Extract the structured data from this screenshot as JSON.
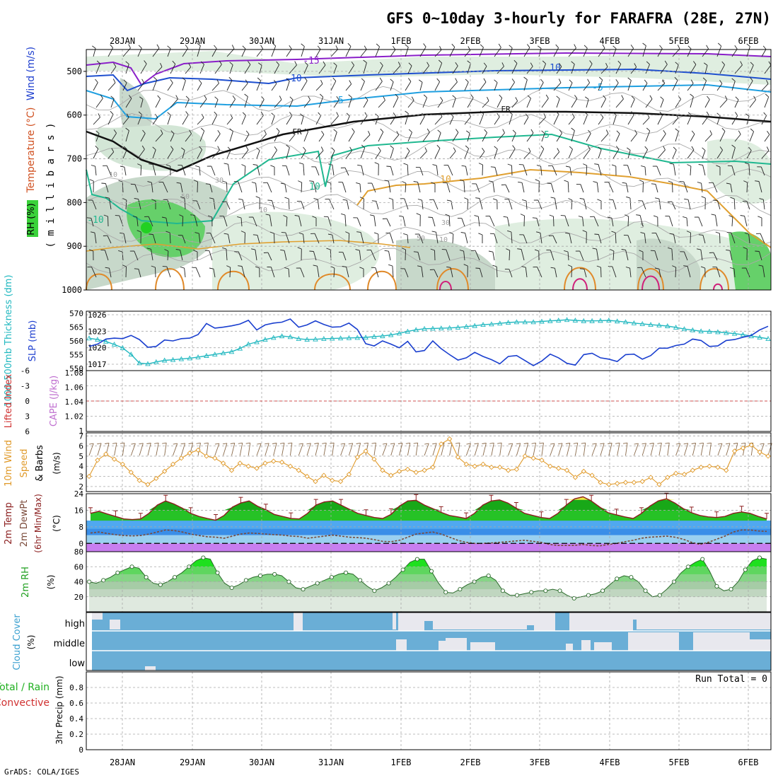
{
  "title": "GFS 0~10day 3-hourly for FARAFRA (28E, 27N)",
  "footer": "GrADS: COLA/IGES",
  "dates": [
    "28JAN",
    "29JAN",
    "30JAN",
    "31JAN",
    "1FEB",
    "2FEB",
    "3FEB",
    "4FEB",
    "5FEB",
    "6FEB"
  ],
  "colors": {
    "frame": "#000000",
    "grid": "#a8a8a8",
    "slp": "#1a3fcf",
    "thickness": "#22b8c0",
    "wind10m": "#e09a2a",
    "temp_max": "#8b1e1e",
    "dewpt": "#7a4a3a",
    "rh_green": "#3ad23a",
    "cloud": "#6aaed6",
    "cloud_gap": "#e8e8ee",
    "cape": "#d05050"
  },
  "chart_data": [
    {
      "id": "upper-air",
      "type": "heatmap",
      "ylabel_rh": "RH (%)",
      "ylabel_temp": "Temperature (°C)",
      "ylabel_wind": "Wind (m/s)",
      "ylabel_level": "( m i l l i b a r s )",
      "y_ticks": [
        500,
        600,
        700,
        800,
        900,
        1000
      ],
      "ylim": [
        450,
        1000
      ],
      "contour_labels": [
        "-15",
        "-10",
        "-5",
        "FR",
        "5",
        "10",
        "10",
        "-5",
        "-10",
        "10",
        "-5",
        "FR",
        "5",
        "30",
        "50",
        "10",
        "30",
        "10",
        "10",
        "50"
      ]
    },
    {
      "id": "slp-thickness",
      "type": "line",
      "ylabel_left": "1000-500mb Thickness (dm)",
      "ylabel_right": "SLP (mb)",
      "left_ticks": [
        "570",
        "565",
        "560",
        "555",
        "550"
      ],
      "right_ticks": [
        "1026",
        "1023",
        "1020",
        "1017"
      ],
      "slp_ylim": [
        1014.5,
        1027.5
      ],
      "thickness_ylim": [
        549,
        571
      ],
      "series": [
        {
          "name": "SLP",
          "values": [
            1019.8,
            1020.3,
            1021.4,
            1021.6,
            1021.5,
            1022.2,
            1021.3,
            1019.6,
            1019.8,
            1021.2,
            1021.0,
            1021.5,
            1021.6,
            1022.4,
            1024.8,
            1023.8,
            1024.0,
            1024.3,
            1024.7,
            1025.5,
            1023.4,
            1024.5,
            1024.9,
            1025.1,
            1025.8,
            1024.0,
            1024.5,
            1025.4,
            1024.6,
            1024.0,
            1024.1,
            1024.9,
            1023.5,
            1020.4,
            1019.9,
            1021.0,
            1020.3,
            1019.5,
            1020.9,
            1018.6,
            1018.9,
            1021.0,
            1019.3,
            1018.0,
            1016.8,
            1017.3,
            1018.5,
            1017.6,
            1016.9,
            1016.0,
            1017.6,
            1017.8,
            1016.7,
            1015.6,
            1016.6,
            1018.1,
            1017.3,
            1016.1,
            1015.7,
            1018.0,
            1018.3,
            1017.3,
            1017.0,
            1016.5,
            1018.0,
            1018.1,
            1017.0,
            1017.8,
            1019.4,
            1019.4,
            1020.0,
            1020.3,
            1021.4,
            1021.1,
            1019.8,
            1019.9,
            1021.1,
            1021.3,
            1021.8,
            1022.2,
            1023.4,
            1024.2
          ]
        },
        {
          "name": "Thickness",
          "values": [
            561.0,
            560.5,
            559.8,
            558.7,
            557.4,
            555.0,
            551.8,
            551.5,
            552.2,
            552.8,
            553.0,
            553.3,
            553.6,
            554.0,
            554.5,
            555.0,
            555.5,
            556.0,
            557.2,
            558.8,
            559.6,
            560.5,
            561.2,
            561.8,
            561.5,
            560.8,
            560.5,
            560.6,
            560.8,
            560.9,
            561.0,
            561.1,
            561.2,
            561.3,
            561.6,
            561.8,
            562.2,
            562.8,
            563.5,
            564.1,
            564.5,
            564.6,
            564.7,
            564.8,
            565.0,
            565.3,
            565.6,
            566.0,
            566.2,
            566.5,
            566.8,
            567.0,
            567.0,
            567.0,
            567.2,
            567.4,
            567.6,
            567.8,
            567.6,
            567.4,
            567.4,
            567.5,
            567.6,
            567.3,
            567.0,
            566.6,
            566.3,
            566.0,
            565.8,
            565.5,
            565.0,
            564.4,
            564.0,
            563.6,
            563.5,
            563.3,
            563.0,
            562.7,
            562.3,
            561.8,
            561.3,
            560.8
          ]
        }
      ]
    },
    {
      "id": "cape-li",
      "type": "line",
      "ylabel_left": "Lifted Index",
      "ylabel_right": "CAPE (J/kg)",
      "left_ticks": [
        "-6",
        "-3",
        "0",
        "3",
        "6"
      ],
      "right_ticks": [
        "1.08",
        "1.06",
        "1.04",
        "1.02",
        "1"
      ],
      "ylim_left": [
        -6,
        6
      ],
      "ylim_right": [
        1,
        1.08
      ]
    },
    {
      "id": "wind10m",
      "type": "line",
      "ylabel_main": "10m Wind",
      "ylabel_sub": "Speed",
      "ylabel_sub2": "& Barbs",
      "ylabel_units": "(m/s)",
      "y_ticks": [
        2,
        3,
        4,
        5,
        6,
        7
      ],
      "ylim": [
        1.5,
        7.3
      ],
      "series": [
        {
          "name": "Speed",
          "values": [
            3.0,
            4.6,
            5.2,
            4.7,
            4.2,
            3.4,
            2.6,
            2.2,
            2.8,
            3.5,
            4.2,
            4.8,
            5.3,
            5.6,
            5.0,
            4.8,
            4.3,
            3.6,
            4.3,
            4.0,
            3.8,
            4.3,
            4.5,
            4.4,
            4.0,
            3.6,
            3.0,
            2.5,
            3.1,
            2.6,
            2.5,
            3.2,
            4.9,
            5.5,
            4.7,
            3.6,
            3.1,
            3.5,
            3.7,
            3.4,
            3.6,
            3.9,
            6.2,
            6.7,
            4.9,
            4.2,
            4.0,
            4.2,
            3.9,
            3.9,
            3.6,
            3.7,
            5.0,
            4.8,
            4.6,
            4.0,
            3.8,
            3.6,
            2.9,
            3.5,
            3.1,
            2.4,
            2.2,
            2.3,
            2.4,
            2.4,
            2.5,
            2.9,
            2.2,
            2.9,
            3.3,
            3.2,
            3.6,
            3.9,
            4.0,
            3.9,
            3.6,
            5.5,
            5.8,
            6.1,
            5.4,
            5.0
          ]
        }
      ]
    },
    {
      "id": "temp2m",
      "type": "area",
      "ylabel_main": "2m Temp",
      "ylabel_sub": "2m DewPt",
      "ylabel_sub2": "(6hr Min/Max)",
      "ylabel_units": "(°C)",
      "y_ticks": [
        0,
        8,
        16,
        24
      ],
      "ylim": [
        -4,
        24
      ],
      "series": [
        {
          "name": "Temperature",
          "values": [
            14.5,
            15.5,
            14.2,
            13.0,
            11.8,
            11.5,
            11.8,
            14.5,
            18.5,
            20.5,
            19.0,
            17.0,
            14.5,
            13.0,
            12.0,
            11.2,
            13.5,
            17.5,
            19.5,
            20.5,
            18.0,
            16.2,
            14.0,
            13.0,
            12.0,
            11.8,
            14.5,
            18.5,
            20.0,
            20.5,
            18.5,
            16.5,
            14.5,
            13.5,
            12.5,
            12.0,
            14.0,
            18.0,
            20.5,
            20.8,
            18.5,
            16.8,
            15.0,
            13.5,
            12.8,
            12.0,
            14.5,
            18.5,
            20.5,
            21.0,
            19.5,
            17.0,
            14.5,
            13.5,
            12.5,
            12.0,
            14.5,
            18.5,
            21.5,
            22.5,
            20.5,
            17.5,
            14.8,
            13.8,
            12.8,
            12.0,
            14.5,
            18.0,
            20.5,
            21.5,
            19.5,
            16.8,
            14.8,
            13.5,
            12.8,
            12.5,
            13.0,
            14.5,
            15.2,
            14.5,
            13.0,
            11.8
          ]
        },
        {
          "name": "DewPoint",
          "values": [
            5.0,
            5.5,
            4.8,
            4.2,
            3.8,
            3.6,
            3.8,
            4.5,
            5.5,
            6.5,
            6.2,
            5.5,
            4.5,
            3.8,
            3.2,
            3.0,
            2.5,
            3.5,
            4.5,
            5.0,
            4.8,
            4.5,
            4.2,
            4.0,
            3.5,
            3.3,
            2.5,
            3.0,
            3.5,
            4.0,
            3.5,
            3.0,
            2.8,
            2.5,
            1.8,
            1.0,
            0.8,
            1.5,
            3.0,
            4.5,
            5.0,
            5.5,
            4.5,
            3.0,
            1.5,
            0.5,
            0.0,
            0.0,
            0.2,
            0.5,
            0.8,
            1.2,
            1.5,
            1.0,
            0.5,
            -0.5,
            -1.0,
            -1.0,
            -1.0,
            -0.5,
            -1.0,
            -1.2,
            -0.5,
            0.0,
            0.8,
            1.5,
            2.5,
            3.0,
            3.2,
            3.5,
            3.0,
            2.0,
            0.5,
            -0.5,
            0.5,
            2.0,
            3.5,
            5.5,
            6.5,
            6.5,
            6.0,
            5.8
          ]
        }
      ]
    },
    {
      "id": "rh2m",
      "type": "area",
      "ylabel_main": "2m RH",
      "ylabel_units": "(%)",
      "y_ticks": [
        20,
        40,
        60,
        80
      ],
      "ylim": [
        0,
        80
      ],
      "series": [
        {
          "name": "RH",
          "values": [
            40,
            38,
            42,
            46,
            52,
            56,
            60,
            58,
            46,
            38,
            36,
            40,
            46,
            52,
            60,
            68,
            72,
            70,
            52,
            38,
            32,
            36,
            42,
            46,
            48,
            50,
            50,
            48,
            40,
            32,
            30,
            34,
            38,
            42,
            46,
            50,
            52,
            50,
            42,
            34,
            28,
            32,
            38,
            46,
            56,
            66,
            70,
            70,
            54,
            38,
            26,
            25,
            30,
            36,
            40,
            46,
            48,
            42,
            28,
            22,
            22,
            24,
            26,
            28,
            28,
            30,
            28,
            22,
            18,
            20,
            22,
            24,
            28,
            36,
            44,
            48,
            46,
            40,
            28,
            20,
            22,
            30,
            40,
            52,
            60,
            66,
            70,
            54,
            34,
            28,
            30,
            40,
            56,
            68,
            72,
            70
          ]
        }
      ]
    },
    {
      "id": "cloud-cover",
      "type": "bar",
      "ylabel": "Cloud Cover",
      "ylabel_units": "(%)",
      "level_labels": [
        "high",
        "middle",
        "low"
      ]
    },
    {
      "id": "precip",
      "type": "bar",
      "ylabel_main": "Total / Rain",
      "ylabel_sub": "Convective",
      "ylabel_units": "3hr Precip (mm)",
      "y_ticks": [
        "0",
        "0.2",
        "0.4",
        "0.6",
        "0.8"
      ],
      "ylim": [
        0,
        1
      ],
      "run_total_label": "Run Total = 0"
    }
  ]
}
